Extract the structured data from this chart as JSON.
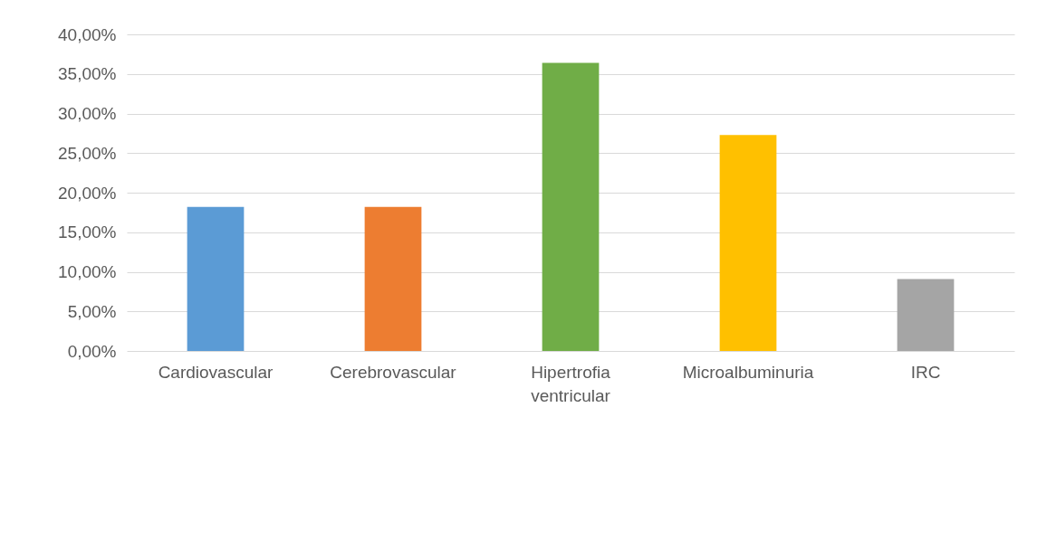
{
  "chart_data": {
    "type": "bar",
    "categories": [
      "Cardiovascular",
      "Cerebrovascular",
      "Hipertrofia ventricular",
      "Microalbuminuria",
      "IRC"
    ],
    "values": [
      18.2,
      18.2,
      36.4,
      27.3,
      9.1
    ],
    "colors": [
      "#5b9bd5",
      "#ed7d31",
      "#70ad47",
      "#ffc000",
      "#a5a5a5"
    ],
    "ylim": [
      0,
      40
    ],
    "yticks": [
      {
        "value": 0,
        "label": "0,00%"
      },
      {
        "value": 5,
        "label": "5,00%"
      },
      {
        "value": 10,
        "label": "10,00%"
      },
      {
        "value": 15,
        "label": "15,00%"
      },
      {
        "value": 20,
        "label": "20,00%"
      },
      {
        "value": 25,
        "label": "25,00%"
      },
      {
        "value": 30,
        "label": "30,00%"
      },
      {
        "value": 35,
        "label": "35,00%"
      },
      {
        "value": 40,
        "label": "40,00%"
      }
    ],
    "grid": "y"
  }
}
